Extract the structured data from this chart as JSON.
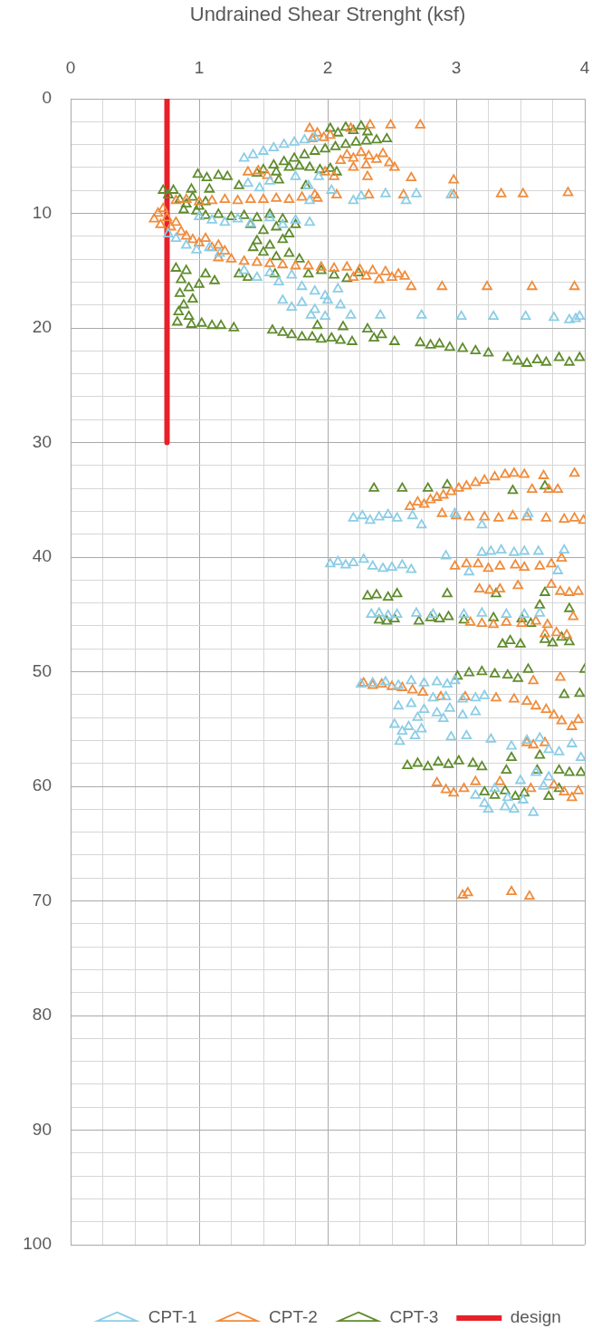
{
  "chart_data": {
    "type": "scatter",
    "xlabel": "Undrained Shear Strenght (ksf)",
    "xlim": [
      0,
      4
    ],
    "xticks": [
      0,
      {
        "value": 0.25,
        "label": null
      },
      {
        "value": 0.5,
        "label": null
      },
      {
        "value": 0.75,
        "label": null
      },
      1,
      {
        "value": 1.25,
        "label": null
      },
      {
        "value": 1.5,
        "label": null
      },
      {
        "value": 1.75,
        "label": null
      },
      2,
      {
        "value": 2.25,
        "label": null
      },
      {
        "value": 2.5,
        "label": null
      },
      {
        "value": 2.75,
        "label": null
      },
      3,
      {
        "value": 3.25,
        "label": null
      },
      {
        "value": 3.5,
        "label": null
      },
      {
        "value": 3.75,
        "label": null
      },
      4
    ],
    "ylim": [
      100,
      0
    ],
    "yticks": [
      0,
      {
        "value": 2,
        "label": null
      },
      {
        "value": 4,
        "label": null
      },
      {
        "value": 6,
        "label": null
      },
      {
        "value": 8,
        "label": null
      },
      10,
      {
        "value": 12,
        "label": null
      },
      {
        "value": 14,
        "label": null
      },
      {
        "value": 16,
        "label": null
      },
      {
        "value": 18,
        "label": null
      },
      20,
      {
        "value": 22,
        "label": null
      },
      {
        "value": 24,
        "label": null
      },
      {
        "value": 26,
        "label": null
      },
      {
        "value": 28,
        "label": null
      },
      30,
      {
        "value": 32,
        "label": null
      },
      {
        "value": 34,
        "label": null
      },
      {
        "value": 36,
        "label": null
      },
      {
        "value": 38,
        "label": null
      },
      40,
      {
        "value": 42,
        "label": null
      },
      {
        "value": 44,
        "label": null
      },
      {
        "value": 46,
        "label": null
      },
      {
        "value": 48,
        "label": null
      },
      50,
      {
        "value": 52,
        "label": null
      },
      {
        "value": 54,
        "label": null
      },
      {
        "value": 56,
        "label": null
      },
      {
        "value": 58,
        "label": null
      },
      60,
      {
        "value": 62,
        "label": null
      },
      {
        "value": 64,
        "label": null
      },
      {
        "value": 66,
        "label": null
      },
      {
        "value": 68,
        "label": null
      },
      70,
      {
        "value": 72,
        "label": null
      },
      {
        "value": 74,
        "label": null
      },
      {
        "value": 76,
        "label": null
      },
      {
        "value": 78,
        "label": null
      },
      80,
      {
        "value": 82,
        "label": null
      },
      {
        "value": 84,
        "label": null
      },
      {
        "value": 86,
        "label": null
      },
      {
        "value": 88,
        "label": null
      },
      90,
      {
        "value": 92,
        "label": null
      },
      {
        "value": 94,
        "label": null
      },
      {
        "value": 96,
        "label": null
      },
      {
        "value": 98,
        "label": null
      },
      100
    ],
    "grid": true,
    "legend": "bottom",
    "marker": "triangle",
    "series": [
      {
        "name": "CPT-1",
        "color": "#8ccde6",
        "x": [
          1.35,
          1.42,
          1.5,
          1.58,
          1.66,
          1.74,
          1.82,
          1.9,
          1.38,
          1.47,
          1.55,
          1.75,
          1.85,
          1.93,
          1.86,
          2.03,
          2.2,
          2.26,
          2.45,
          2.61,
          2.69,
          2.96,
          1.0,
          1.1,
          1.2,
          1.3,
          1.4,
          1.55,
          1.65,
          1.75,
          1.86,
          0.76,
          0.82,
          0.9,
          0.98,
          1.08,
          1.16,
          1.35,
          1.45,
          1.55,
          1.62,
          1.72,
          1.8,
          1.9,
          1.98,
          2.08,
          1.65,
          1.72,
          1.8,
          1.9,
          2.0,
          2.1,
          1.87,
          1.98,
          2.18,
          2.41,
          2.73,
          3.04,
          3.29,
          3.54,
          3.76,
          3.88,
          3.93,
          3.96,
          2.2,
          2.27,
          2.33,
          2.4,
          2.47,
          2.54,
          2.66,
          2.73,
          2.99,
          3.2,
          3.56,
          2.02,
          2.08,
          2.14,
          2.2,
          2.28,
          2.35,
          2.43,
          2.5,
          2.58,
          2.65,
          2.92,
          3.1,
          3.2,
          3.27,
          3.35,
          3.45,
          3.53,
          3.64,
          3.79,
          3.84,
          2.34,
          2.4,
          2.47,
          2.54,
          2.69,
          2.82,
          3.06,
          3.2,
          3.39,
          3.53,
          3.65,
          2.26,
          2.35,
          2.45,
          2.55,
          2.65,
          2.75,
          2.85,
          2.93,
          2.99,
          2.82,
          2.92,
          3.05,
          3.15,
          3.22,
          2.55,
          2.65,
          2.75,
          2.85,
          2.95,
          3.05,
          3.15,
          2.7,
          2.9,
          2.52,
          2.58,
          2.63,
          2.68,
          2.56,
          2.73,
          2.96,
          3.08,
          3.27,
          3.43,
          3.55,
          3.65,
          3.72,
          3.8,
          3.9,
          3.97,
          3.15,
          3.22,
          3.3,
          3.38,
          3.45,
          3.52,
          3.6,
          3.68,
          3.72,
          3.5,
          3.62,
          3.4,
          3.25
        ],
        "values": [
          5.2,
          4.9,
          4.6,
          4.3,
          4.0,
          3.8,
          3.6,
          3.4,
          7.4,
          7.8,
          7.2,
          6.8,
          7.6,
          6.8,
          8.9,
          8.0,
          8.9,
          8.5,
          8.3,
          8.9,
          8.3,
          8.4,
          10.3,
          10.6,
          10.8,
          10.5,
          10.9,
          10.4,
          11.0,
          10.6,
          10.8,
          11.8,
          12.2,
          12.8,
          13.2,
          13.0,
          13.5,
          15.0,
          15.6,
          15.2,
          16.0,
          15.4,
          16.4,
          16.8,
          17.2,
          16.6,
          17.6,
          18.2,
          17.8,
          18.4,
          17.6,
          18.0,
          18.9,
          19.0,
          18.9,
          18.9,
          18.9,
          19.0,
          19.0,
          19.0,
          19.1,
          19.3,
          19.2,
          19.0,
          36.6,
          36.4,
          36.8,
          36.5,
          36.3,
          36.6,
          36.4,
          37.2,
          36.2,
          37.2,
          36.2,
          40.6,
          40.4,
          40.7,
          40.5,
          40.2,
          40.8,
          41.0,
          40.9,
          40.7,
          41.1,
          39.9,
          41.3,
          39.6,
          39.5,
          39.4,
          39.6,
          39.5,
          39.5,
          41.2,
          39.4,
          45.0,
          44.9,
          45.1,
          45.0,
          44.9,
          45.0,
          45.0,
          44.9,
          45.0,
          45.0,
          44.9,
          51.1,
          51.0,
          50.9,
          51.2,
          50.8,
          51.0,
          50.9,
          51.1,
          50.8,
          52.3,
          52.2,
          52.4,
          52.3,
          52.1,
          53.0,
          52.8,
          53.3,
          53.6,
          53.2,
          53.8,
          53.5,
          54.0,
          54.1,
          54.6,
          55.2,
          54.8,
          55.6,
          56.1,
          55.0,
          55.7,
          55.6,
          55.9,
          56.5,
          56.0,
          55.8,
          56.8,
          57.0,
          56.3,
          57.5,
          60.8,
          61.5,
          60.2,
          61.8,
          62.0,
          61.2,
          62.3,
          60.0,
          59.2,
          59.5,
          58.8,
          61.0,
          62.0
        ]
      },
      {
        "name": "CPT-2",
        "color": "#f08c3c",
        "x": [
          1.86,
          1.92,
          1.97,
          2.02,
          1.88,
          2.18,
          2.33,
          2.49,
          2.72,
          2.1,
          2.15,
          2.2,
          2.26,
          2.32,
          2.38,
          2.43,
          2.48,
          2.52,
          2.3,
          2.2,
          1.98,
          2.05,
          2.31,
          2.65,
          2.98,
          1.38,
          1.46,
          1.53,
          1.9,
          2.07,
          2.32,
          2.59,
          2.98,
          3.35,
          3.52,
          3.87,
          0.82,
          0.9,
          1.0,
          1.1,
          1.2,
          1.3,
          1.4,
          1.5,
          1.6,
          1.7,
          1.8,
          1.92,
          0.65,
          0.68,
          0.72,
          0.7,
          0.75,
          0.78,
          0.82,
          0.86,
          0.9,
          0.95,
          1.0,
          1.05,
          1.1,
          1.15,
          1.2,
          1.15,
          1.25,
          1.35,
          1.45,
          1.55,
          1.65,
          1.75,
          1.85,
          1.95,
          2.05,
          2.15,
          2.25,
          2.35,
          2.45,
          2.55,
          2.2,
          2.3,
          2.4,
          2.5,
          2.6,
          2.65,
          2.89,
          3.24,
          3.59,
          3.92,
          2.64,
          2.7,
          2.75,
          2.8,
          2.85,
          2.9,
          2.96,
          3.02,
          3.08,
          3.15,
          3.22,
          3.3,
          3.38,
          3.45,
          3.53,
          3.59,
          3.68,
          3.72,
          3.79,
          3.92,
          2.89,
          3.0,
          3.1,
          3.22,
          3.33,
          3.44,
          3.55,
          3.7,
          3.84,
          3.92,
          3.99,
          2.99,
          3.08,
          3.17,
          3.25,
          3.34,
          3.46,
          3.53,
          3.65,
          3.74,
          3.82,
          3.18,
          3.26,
          3.34,
          3.48,
          3.74,
          3.81,
          3.88,
          3.95,
          3.11,
          3.2,
          3.29,
          3.39,
          3.51,
          3.62,
          3.71,
          3.91,
          3.69,
          3.78,
          3.86,
          2.28,
          2.35,
          2.42,
          2.5,
          2.58,
          2.66,
          2.74,
          2.88,
          3.07,
          3.31,
          3.45,
          3.55,
          3.62,
          3.7,
          3.6,
          3.81,
          3.76,
          3.82,
          3.9,
          3.95,
          3.55,
          3.6,
          3.69,
          2.85,
          2.92,
          2.98,
          3.06,
          3.15,
          3.34,
          3.58,
          3.76,
          3.84,
          3.9,
          3.95,
          3.05,
          3.09,
          3.43,
          3.57
        ],
        "values": [
          2.6,
          3.0,
          3.4,
          3.2,
          3.5,
          2.6,
          2.3,
          2.3,
          2.3,
          5.4,
          4.9,
          5.2,
          4.7,
          5.0,
          5.3,
          4.8,
          5.6,
          6.0,
          5.8,
          6.0,
          6.4,
          6.8,
          6.8,
          6.9,
          7.1,
          6.4,
          6.3,
          6.7,
          8.4,
          8.4,
          8.4,
          8.4,
          8.4,
          8.3,
          8.3,
          8.2,
          8.9,
          8.8,
          9.0,
          8.9,
          8.8,
          8.9,
          8.8,
          8.8,
          8.7,
          8.8,
          8.6,
          8.7,
          10.5,
          10.0,
          9.6,
          11.0,
          10.4,
          11.2,
          10.8,
          11.6,
          12.0,
          12.3,
          12.6,
          12.2,
          13.0,
          12.8,
          13.3,
          13.9,
          14.0,
          14.2,
          14.3,
          14.4,
          14.5,
          14.6,
          14.6,
          14.7,
          14.8,
          14.7,
          14.9,
          15.0,
          15.1,
          15.3,
          15.6,
          15.5,
          15.8,
          15.6,
          15.5,
          16.4,
          16.4,
          16.4,
          16.4,
          16.4,
          35.6,
          35.2,
          35.4,
          35.0,
          34.8,
          34.6,
          34.3,
          34.0,
          33.8,
          33.5,
          33.3,
          33.0,
          32.8,
          32.7,
          32.8,
          34.1,
          32.9,
          34.1,
          34.1,
          32.7,
          36.2,
          36.4,
          36.5,
          36.5,
          36.6,
          36.4,
          36.5,
          36.6,
          36.7,
          36.6,
          36.8,
          40.8,
          40.6,
          40.6,
          41.0,
          40.8,
          40.7,
          40.9,
          40.8,
          40.6,
          40.1,
          42.8,
          42.9,
          42.8,
          42.5,
          42.4,
          43.0,
          43.1,
          43.0,
          45.7,
          45.8,
          45.9,
          45.7,
          45.8,
          45.6,
          45.9,
          45.2,
          46.7,
          46.6,
          46.8,
          51.0,
          51.2,
          51.1,
          51.3,
          51.4,
          51.6,
          51.8,
          52.2,
          52.2,
          52.3,
          52.4,
          52.6,
          53.0,
          53.3,
          50.8,
          50.5,
          53.8,
          54.3,
          54.8,
          54.2,
          56.2,
          56.4,
          56.2,
          59.7,
          60.3,
          60.6,
          60.2,
          59.6,
          59.6,
          60.2,
          59.9,
          60.5,
          61.0,
          60.4,
          69.5,
          69.3,
          69.2,
          69.6
        ]
      },
      {
        "name": "CPT-3",
        "color": "#5f8c2d",
        "x": [
          2.02,
          2.08,
          2.14,
          2.2,
          2.26,
          2.31,
          1.5,
          1.58,
          1.66,
          1.74,
          1.82,
          1.9,
          1.98,
          2.06,
          2.14,
          2.22,
          2.3,
          2.38,
          2.46,
          1.7,
          1.6,
          1.78,
          1.86,
          1.94,
          2.02,
          2.07,
          0.99,
          1.06,
          1.15,
          1.22,
          1.31,
          1.45,
          1.62,
          1.83,
          0.72,
          0.76,
          0.8,
          0.85,
          0.9,
          0.95,
          1.0,
          1.05,
          0.94,
          1.08,
          0.88,
          0.98,
          1.05,
          1.15,
          1.25,
          1.35,
          1.45,
          1.55,
          1.65,
          1.4,
          1.5,
          1.6,
          1.7,
          1.45,
          1.55,
          1.65,
          1.5,
          1.6,
          1.7,
          1.78,
          1.42,
          1.75,
          0.82,
          0.9,
          0.86,
          0.92,
          0.85,
          0.95,
          0.88,
          0.84,
          0.92,
          0.83,
          1.0,
          1.05,
          1.12,
          1.31,
          1.38,
          1.59,
          1.85,
          1.95,
          2.05,
          2.15,
          2.24,
          0.94,
          1.02,
          1.1,
          1.17,
          1.27,
          1.57,
          1.65,
          1.72,
          1.8,
          1.88,
          1.95,
          2.03,
          2.1,
          2.19,
          1.92,
          2.12,
          2.31,
          2.42,
          2.36,
          2.52,
          2.72,
          2.8,
          2.87,
          2.95,
          3.05,
          3.15,
          3.25,
          3.4,
          3.48,
          3.55,
          3.63,
          3.7,
          3.8,
          3.88,
          3.96,
          2.36,
          2.58,
          2.78,
          2.93,
          3.44,
          3.69,
          2.31,
          2.38,
          2.47,
          2.54,
          2.93,
          3.31,
          3.69,
          3.65,
          2.4,
          2.46,
          2.52,
          2.71,
          2.8,
          2.87,
          2.94,
          3.06,
          3.29,
          3.51,
          3.58,
          3.88,
          3.36,
          3.42,
          3.5,
          3.69,
          3.75,
          3.82,
          3.88,
          3.01,
          3.1,
          3.2,
          3.3,
          3.4,
          3.48,
          3.56,
          4.0,
          3.84,
          3.96,
          2.62,
          2.7,
          2.78,
          2.86,
          2.94,
          3.02,
          3.13,
          3.2,
          3.43,
          3.65,
          3.39,
          3.63,
          3.8,
          3.88,
          3.97,
          3.22,
          3.3,
          3.38,
          3.46,
          3.53,
          3.72,
          3.8
        ],
        "values": [
          2.6,
          3.0,
          2.5,
          2.8,
          2.4,
          2.9,
          6.2,
          5.8,
          5.5,
          5.2,
          4.9,
          4.6,
          4.4,
          4.2,
          4.0,
          3.8,
          3.7,
          3.6,
          3.5,
          6.0,
          6.4,
          5.9,
          6.0,
          6.2,
          6.1,
          6.4,
          6.6,
          6.9,
          6.7,
          6.8,
          7.6,
          6.5,
          7.1,
          7.6,
          8.0,
          8.4,
          8.0,
          8.8,
          9.2,
          8.6,
          9.4,
          9.0,
          7.9,
          7.9,
          9.7,
          9.8,
          10.2,
          10.1,
          10.3,
          10.2,
          10.4,
          10.1,
          10.5,
          11.0,
          11.5,
          11.2,
          11.8,
          12.4,
          12.8,
          12.3,
          13.4,
          13.8,
          13.5,
          14.0,
          13.0,
          11.0,
          14.8,
          15.0,
          15.8,
          16.5,
          17.0,
          17.5,
          18.0,
          18.6,
          19.0,
          19.5,
          16.2,
          15.3,
          15.9,
          15.3,
          15.6,
          15.3,
          15.3,
          15.0,
          15.4,
          15.7,
          15.2,
          19.7,
          19.6,
          19.8,
          19.8,
          20.0,
          20.2,
          20.4,
          20.6,
          20.8,
          20.8,
          21.0,
          20.9,
          21.1,
          21.2,
          19.8,
          19.9,
          20.1,
          20.6,
          20.9,
          21.2,
          21.3,
          21.5,
          21.4,
          21.7,
          21.8,
          22.0,
          22.2,
          22.6,
          22.9,
          23.1,
          22.8,
          23.0,
          22.6,
          23.0,
          22.6,
          34.0,
          34.0,
          34.0,
          33.7,
          34.2,
          33.8,
          43.4,
          43.3,
          43.5,
          43.2,
          43.2,
          43.2,
          43.1,
          44.2,
          45.5,
          45.6,
          45.4,
          45.6,
          45.3,
          45.4,
          45.2,
          45.5,
          45.3,
          45.4,
          45.8,
          44.5,
          47.6,
          47.3,
          47.6,
          47.2,
          47.5,
          47.0,
          47.4,
          50.4,
          50.1,
          50.0,
          50.2,
          50.3,
          50.6,
          49.8,
          49.8,
          52.0,
          51.9,
          58.2,
          58.0,
          58.3,
          57.9,
          58.1,
          57.8,
          58.0,
          58.3,
          57.5,
          57.3,
          58.6,
          58.6,
          58.6,
          58.8,
          58.8,
          60.5,
          60.8,
          60.4,
          60.9,
          60.6,
          60.9,
          60.2
        ]
      },
      {
        "name": "design",
        "type": "line",
        "marker": "none",
        "color": "#e8202a",
        "x": [
          0.75,
          0.75
        ],
        "values": [
          0,
          30
        ]
      }
    ]
  }
}
